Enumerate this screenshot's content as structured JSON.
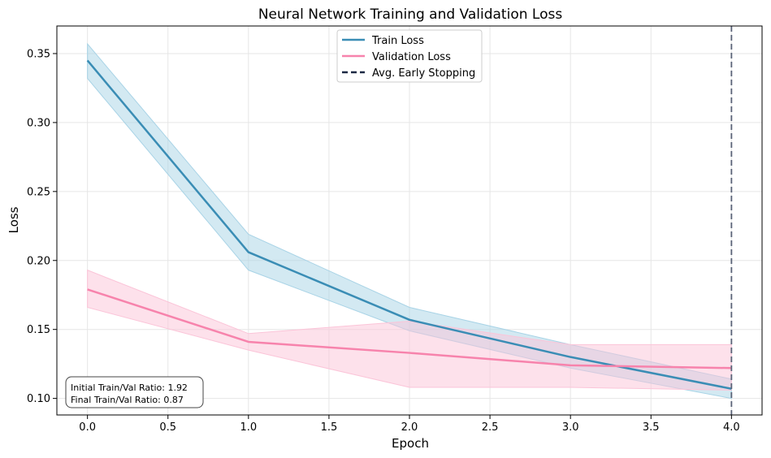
{
  "chart_data": {
    "type": "line",
    "title": "Neural Network Training and Validation Loss",
    "xlabel": "Epoch",
    "ylabel": "Loss",
    "xlim": [
      -0.19,
      4.19
    ],
    "ylim": [
      0.088,
      0.37
    ],
    "xticks": [
      0.0,
      0.5,
      1.0,
      1.5,
      2.0,
      2.5,
      3.0,
      3.5,
      4.0
    ],
    "xtick_labels": [
      "0.0",
      "0.5",
      "1.0",
      "1.5",
      "2.0",
      "2.5",
      "3.0",
      "3.5",
      "4.0"
    ],
    "yticks": [
      0.1,
      0.15,
      0.2,
      0.25,
      0.3,
      0.35
    ],
    "ytick_labels": [
      "0.10",
      "0.15",
      "0.20",
      "0.25",
      "0.30",
      "0.35"
    ],
    "grid": true,
    "legend_position": "top-center",
    "x": [
      0,
      1,
      2,
      3,
      4
    ],
    "series": [
      {
        "name": "Train Loss",
        "color": "#3a8db5",
        "band_color": "#a8d3e6",
        "values": [
          0.345,
          0.206,
          0.157,
          0.13,
          0.107
        ],
        "lower": [
          0.332,
          0.193,
          0.149,
          0.122,
          0.1
        ],
        "upper": [
          0.357,
          0.219,
          0.166,
          0.139,
          0.114
        ]
      },
      {
        "name": "Validation Loss",
        "color": "#f783ac",
        "band_color": "#fbc4d8",
        "values": [
          0.179,
          0.141,
          0.133,
          0.124,
          0.122
        ],
        "lower": [
          0.166,
          0.135,
          0.108,
          0.108,
          0.106
        ],
        "upper": [
          0.193,
          0.147,
          0.156,
          0.139,
          0.139
        ]
      }
    ],
    "vline": {
      "name": "Avg. Early Stopping",
      "x": 4.0,
      "color": "#5b6478"
    },
    "annotations": [
      "Initial Train/Val Ratio: 1.92",
      "Final Train/Val Ratio: 0.87"
    ]
  }
}
